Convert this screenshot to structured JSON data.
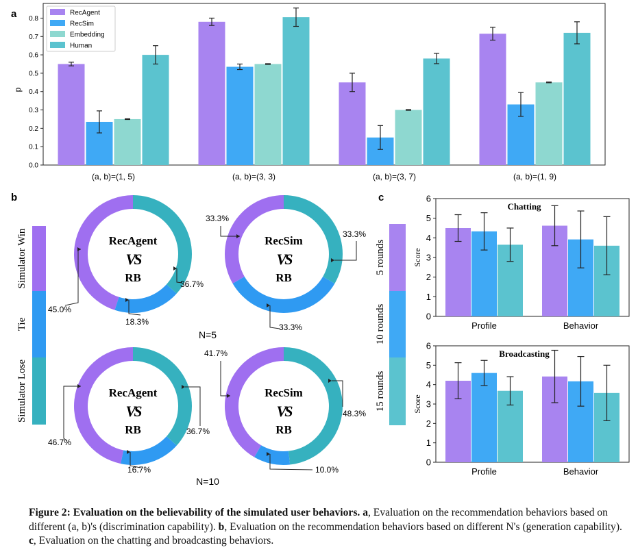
{
  "colors": {
    "recagent": "#a884f0",
    "recsim": "#3fa9f5",
    "embedding": "#8ed8d0",
    "human": "#5bc3cf",
    "donut_win": "#9f6ff0",
    "donut_tie": "#2f9af2",
    "donut_lose": "#36b1bf",
    "errorbar": "#222222"
  },
  "panel_a": {
    "label": "a",
    "chart_data": {
      "type": "bar",
      "categories": [
        "(a, b)=(1, 5)",
        "(a, b)=(3, 3)",
        "(a, b)=(3, 7)",
        "(a, b)=(1, 9)"
      ],
      "ylabel": "p",
      "ylim": [
        0,
        0.88
      ],
      "yticks": [
        "0.0",
        "0.1",
        "0.2",
        "0.3",
        "0.4",
        "0.5",
        "0.6",
        "0.7",
        "0.8"
      ],
      "legend_position": "top-left",
      "series": [
        {
          "name": "RecAgent",
          "values": [
            0.55,
            0.78,
            0.45,
            0.715
          ],
          "errors": [
            0.01,
            0.02,
            0.05,
            0.035
          ]
        },
        {
          "name": "RecSim",
          "values": [
            0.235,
            0.535,
            0.15,
            0.33
          ],
          "errors": [
            0.06,
            0.015,
            0.065,
            0.065
          ]
        },
        {
          "name": "Embedding",
          "values": [
            0.25,
            0.55,
            0.3,
            0.45
          ],
          "errors": [
            0.002,
            0.002,
            0.002,
            0.002
          ]
        },
        {
          "name": "Human",
          "values": [
            0.6,
            0.805,
            0.58,
            0.72
          ],
          "errors": [
            0.05,
            0.05,
            0.028,
            0.06
          ]
        }
      ]
    }
  },
  "panel_b": {
    "label": "b",
    "legend_items": [
      "Simulator Win",
      "Tie",
      "Simulator Lose"
    ],
    "vs_text": "VS",
    "n_labels": [
      "N=5",
      "N=10"
    ],
    "chart_data": [
      {
        "type": "pie",
        "title": "RecAgent",
        "subtitle": "RB",
        "group": "N=5",
        "slices": [
          {
            "label": "Simulator Win",
            "value": 45.0,
            "text": "45.0%"
          },
          {
            "label": "Tie",
            "value": 18.3,
            "text": "18.3%"
          },
          {
            "label": "Simulator Lose",
            "value": 36.7,
            "text": "36.7%"
          }
        ]
      },
      {
        "type": "pie",
        "title": "RecSim",
        "subtitle": "RB",
        "group": "N=5",
        "slices": [
          {
            "label": "Simulator Win",
            "value": 33.3,
            "text": "33.3%"
          },
          {
            "label": "Tie",
            "value": 33.3,
            "text": "33.3%"
          },
          {
            "label": "Simulator Lose",
            "value": 33.3,
            "text": "33.3%"
          }
        ]
      },
      {
        "type": "pie",
        "title": "RecAgent",
        "subtitle": "RB",
        "group": "N=10",
        "slices": [
          {
            "label": "Simulator Win",
            "value": 46.7,
            "text": "46.7%"
          },
          {
            "label": "Tie",
            "value": 16.7,
            "text": "16.7%"
          },
          {
            "label": "Simulator Lose",
            "value": 36.7,
            "text": "36.7%"
          }
        ]
      },
      {
        "type": "pie",
        "title": "RecSim",
        "subtitle": "RB",
        "group": "N=10",
        "slices": [
          {
            "label": "Simulator Win",
            "value": 41.7,
            "text": "41.7%"
          },
          {
            "label": "Tie",
            "value": 10.0,
            "text": "10.0%"
          },
          {
            "label": "Simulator Lose",
            "value": 48.3,
            "text": "48.3%"
          }
        ]
      }
    ]
  },
  "panel_c": {
    "label": "c",
    "legend_items": [
      "5 rounds",
      "10 rounds",
      "15 rounds"
    ],
    "chart_data": [
      {
        "type": "bar",
        "title": "Chatting",
        "ylabel": "Score",
        "ylim": [
          0,
          6
        ],
        "yticks": [
          "0",
          "1",
          "2",
          "3",
          "4",
          "5",
          "6"
        ],
        "categories": [
          "Profile",
          "Behavior"
        ],
        "series": [
          {
            "name": "5 rounds",
            "values": [
              4.5,
              4.62
            ],
            "errors": [
              0.68,
              1.02
            ]
          },
          {
            "name": "10 rounds",
            "values": [
              4.33,
              3.92
            ],
            "errors": [
              0.95,
              1.45
            ]
          },
          {
            "name": "15 rounds",
            "values": [
              3.65,
              3.6
            ],
            "errors": [
              0.85,
              1.48
            ]
          }
        ]
      },
      {
        "type": "bar",
        "title": "Broadcasting",
        "ylabel": "Score",
        "ylim": [
          0,
          6
        ],
        "yticks": [
          "0",
          "1",
          "2",
          "3",
          "4",
          "5",
          "6"
        ],
        "categories": [
          "Profile",
          "Behavior"
        ],
        "series": [
          {
            "name": "5 rounds",
            "values": [
              4.2,
              4.42
            ],
            "errors": [
              0.93,
              1.35
            ]
          },
          {
            "name": "10 rounds",
            "values": [
              4.6,
              4.17
            ],
            "errors": [
              0.65,
              1.28
            ]
          },
          {
            "name": "15 rounds",
            "values": [
              3.68,
              3.57
            ],
            "errors": [
              0.73,
              1.43
            ]
          }
        ]
      }
    ]
  },
  "caption": {
    "label": "Figure 2:",
    "title": "Evaluation on the believability of the simulated user behaviors.",
    "a_key": "a",
    "a_text": ", Evaluation on the recommendation behaviors based on different (a, b)'s (discrimination capability).",
    "b_key": "b",
    "b_text": ", Evaluation on the recommendation behaviors based on different N's (generation capability).",
    "c_key": "c",
    "c_text": ", Evaluation on the chatting and broadcasting behaviors."
  }
}
